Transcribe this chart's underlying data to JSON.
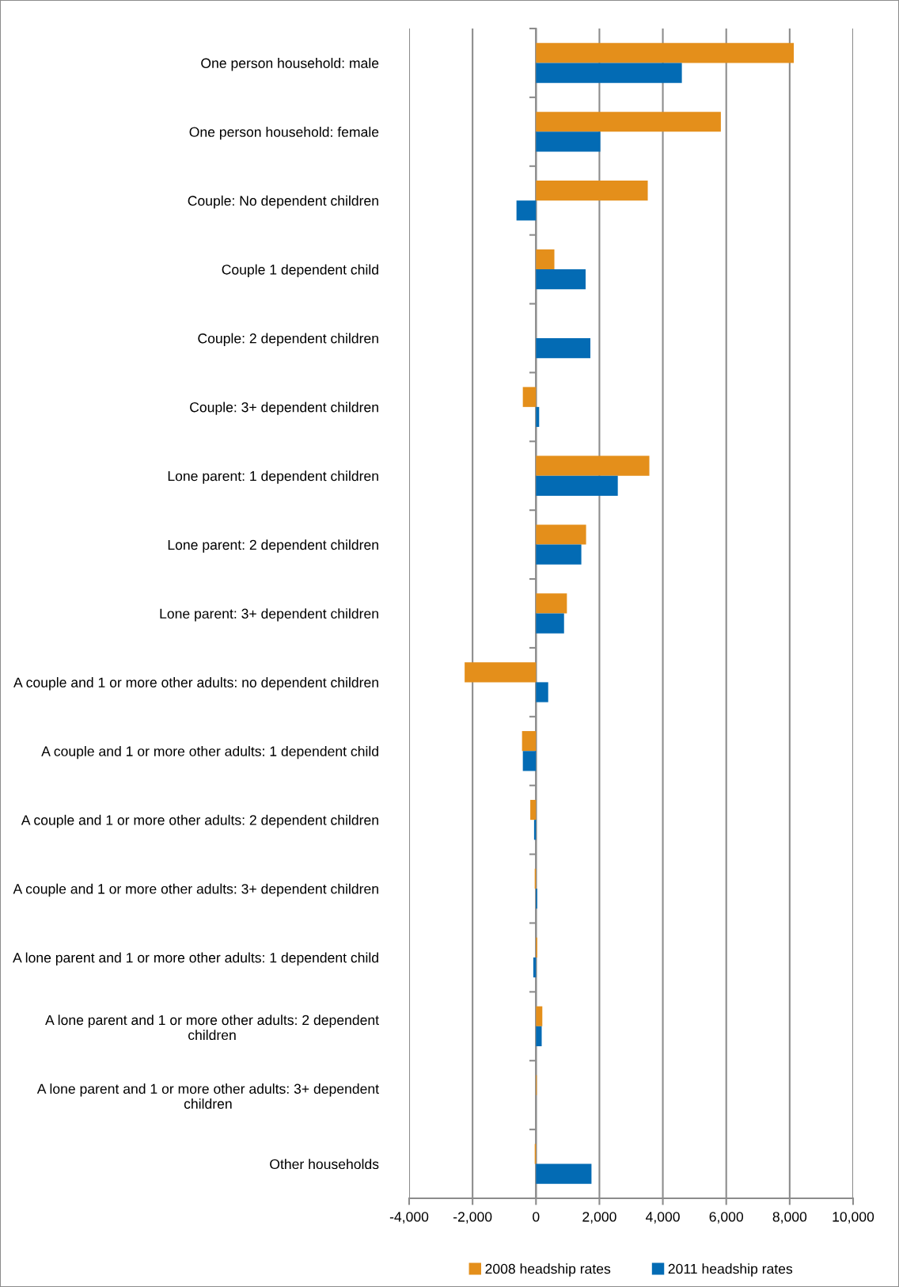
{
  "chart_data": {
    "type": "bar",
    "orientation": "horizontal",
    "categories": [
      "One person household: male",
      "One person household: female",
      "Couple: No dependent children",
      "Couple 1 dependent child",
      "Couple: 2 dependent children",
      "Couple: 3+ dependent children",
      "Lone parent: 1 dependent children",
      "Lone parent: 2 dependent children",
      "Lone parent: 3+ dependent children",
      "A couple and 1 or more other adults: no dependent children",
      "A couple and 1 or more other adults: 1 dependent child",
      "A couple and 1 or more other adults: 2 dependent children",
      "A couple and 1 or more other adults: 3+ dependent children",
      "A lone parent and 1 or more other adults: 1 dependent child",
      "A lone parent and 1 or more other adults: 2 dependent children",
      "A lone parent and 1 or more other adults: 3+ dependent children",
      "Other households"
    ],
    "series": [
      {
        "name": "2008 headship rates",
        "color": "#e48f1b",
        "values": [
          8130,
          5830,
          3525,
          580,
          0,
          -415,
          3575,
          1580,
          975,
          -2250,
          -440,
          -180,
          -40,
          40,
          200,
          25,
          -40
        ]
      },
      {
        "name": "2011 headship rates",
        "color": "#036bb4",
        "values": [
          4600,
          2030,
          -615,
          1565,
          1715,
          100,
          2580,
          1430,
          885,
          385,
          -415,
          -60,
          40,
          -85,
          180,
          0,
          1750
        ]
      }
    ],
    "xlim": [
      -4000,
      10000
    ],
    "xticks": [
      {
        "value": -4000,
        "label": "-4,000"
      },
      {
        "value": -2000,
        "label": "-2,000"
      },
      0,
      {
        "value": 2000,
        "label": "2,000"
      },
      {
        "value": 4000,
        "label": "4,000"
      },
      {
        "value": 6000,
        "label": "6,000"
      },
      {
        "value": 8000,
        "label": "8,000"
      },
      {
        "value": 10000,
        "label": "10,000"
      }
    ],
    "grid": "x",
    "legend": "bottom"
  }
}
